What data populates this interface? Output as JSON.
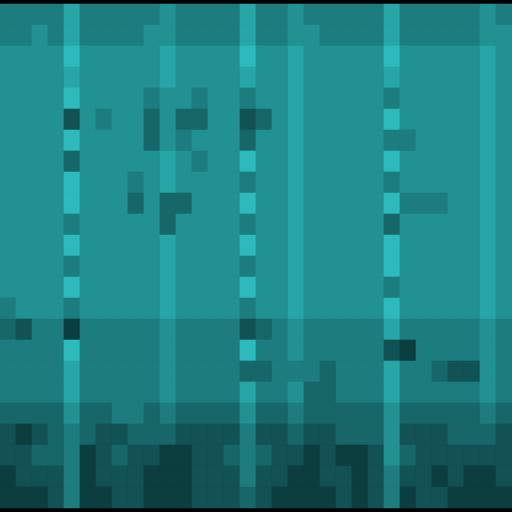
{
  "chart_data": {
    "type": "heatmap",
    "tick_labels": false,
    "zlim": [
      0,
      10
    ],
    "color": [
      "#031415",
      "#36e4e6"
    ],
    "cells": [
      [
        5,
        5,
        5,
        5,
        7,
        5,
        5,
        5,
        5,
        5,
        6,
        5,
        5,
        5,
        5,
        7,
        5,
        5,
        6,
        5,
        5,
        5,
        5,
        5,
        7,
        5,
        5,
        5,
        5,
        5,
        6,
        5
      ],
      [
        5,
        5,
        6,
        5,
        7,
        5,
        5,
        5,
        5,
        6,
        6,
        5,
        5,
        5,
        5,
        7,
        5,
        5,
        6,
        6,
        5,
        5,
        5,
        5,
        7,
        5,
        5,
        5,
        5,
        5,
        6,
        6
      ],
      [
        6,
        6,
        6,
        6,
        8,
        6,
        6,
        6,
        6,
        6,
        7,
        6,
        6,
        6,
        6,
        8,
        6,
        6,
        7,
        6,
        6,
        6,
        6,
        6,
        8,
        6,
        6,
        6,
        6,
        6,
        7,
        6
      ],
      [
        6,
        6,
        6,
        6,
        7,
        6,
        6,
        6,
        6,
        6,
        7,
        6,
        6,
        6,
        6,
        7,
        6,
        6,
        7,
        6,
        6,
        6,
        6,
        6,
        7,
        6,
        6,
        6,
        6,
        6,
        7,
        6
      ],
      [
        6,
        6,
        6,
        6,
        8,
        6,
        6,
        6,
        6,
        5,
        6,
        6,
        5,
        6,
        6,
        5,
        6,
        6,
        7,
        6,
        6,
        6,
        6,
        6,
        5,
        6,
        6,
        6,
        6,
        6,
        7,
        6
      ],
      [
        6,
        6,
        6,
        6,
        3,
        6,
        5,
        6,
        6,
        4,
        6,
        4,
        4,
        6,
        6,
        3,
        4,
        6,
        7,
        6,
        6,
        6,
        6,
        6,
        8,
        6,
        6,
        6,
        6,
        6,
        7,
        6
      ],
      [
        6,
        6,
        6,
        6,
        8,
        6,
        6,
        6,
        6,
        4,
        6,
        5,
        6,
        6,
        6,
        4,
        6,
        6,
        7,
        6,
        6,
        6,
        6,
        6,
        5,
        5,
        6,
        6,
        6,
        6,
        7,
        6
      ],
      [
        6,
        6,
        6,
        6,
        4,
        6,
        6,
        6,
        6,
        6,
        7,
        6,
        5,
        6,
        6,
        8,
        6,
        6,
        7,
        6,
        6,
        6,
        6,
        6,
        8,
        6,
        6,
        6,
        6,
        6,
        7,
        6
      ],
      [
        6,
        6,
        6,
        6,
        8,
        6,
        6,
        6,
        5,
        6,
        7,
        6,
        6,
        6,
        6,
        5,
        6,
        6,
        7,
        6,
        6,
        6,
        6,
        6,
        5,
        6,
        6,
        6,
        6,
        6,
        7,
        6
      ],
      [
        6,
        6,
        6,
        6,
        8,
        6,
        6,
        6,
        4,
        6,
        4,
        4,
        6,
        6,
        6,
        8,
        6,
        6,
        7,
        6,
        6,
        6,
        6,
        6,
        8,
        5,
        5,
        5,
        6,
        6,
        7,
        6
      ],
      [
        6,
        6,
        6,
        6,
        5,
        6,
        6,
        6,
        6,
        6,
        4,
        6,
        6,
        6,
        6,
        5,
        6,
        6,
        7,
        6,
        6,
        6,
        6,
        6,
        4,
        6,
        6,
        6,
        6,
        6,
        7,
        6
      ],
      [
        6,
        6,
        6,
        6,
        8,
        6,
        6,
        6,
        6,
        6,
        7,
        6,
        6,
        6,
        6,
        8,
        6,
        6,
        7,
        6,
        6,
        6,
        6,
        6,
        8,
        6,
        6,
        6,
        6,
        6,
        7,
        6
      ],
      [
        6,
        6,
        6,
        6,
        5,
        6,
        6,
        6,
        6,
        6,
        7,
        6,
        6,
        6,
        6,
        5,
        6,
        6,
        7,
        6,
        6,
        6,
        6,
        6,
        8,
        6,
        6,
        6,
        6,
        6,
        7,
        6
      ],
      [
        6,
        6,
        6,
        6,
        8,
        6,
        6,
        6,
        6,
        6,
        7,
        6,
        6,
        6,
        6,
        8,
        6,
        6,
        7,
        6,
        6,
        6,
        6,
        6,
        5,
        6,
        6,
        6,
        6,
        6,
        7,
        6
      ],
      [
        5,
        6,
        6,
        6,
        5,
        6,
        6,
        6,
        6,
        6,
        7,
        6,
        6,
        6,
        6,
        5,
        6,
        6,
        7,
        6,
        6,
        6,
        6,
        6,
        8,
        6,
        6,
        6,
        6,
        6,
        7,
        6
      ],
      [
        4,
        3,
        5,
        5,
        2,
        5,
        5,
        5,
        5,
        5,
        6,
        5,
        5,
        5,
        5,
        3,
        4,
        5,
        6,
        5,
        5,
        5,
        5,
        5,
        7,
        5,
        5,
        5,
        5,
        5,
        6,
        5
      ],
      [
        5,
        5,
        5,
        5,
        8,
        5,
        5,
        5,
        5,
        5,
        6,
        5,
        5,
        5,
        5,
        8,
        5,
        5,
        6,
        5,
        5,
        5,
        5,
        5,
        3,
        2,
        5,
        5,
        5,
        5,
        6,
        5
      ],
      [
        5,
        5,
        5,
        5,
        7,
        5,
        5,
        5,
        5,
        5,
        6,
        5,
        5,
        5,
        5,
        4,
        4,
        5,
        5,
        5,
        4,
        5,
        5,
        5,
        7,
        5,
        5,
        4,
        3,
        3,
        6,
        5
      ],
      [
        5,
        5,
        5,
        5,
        7,
        5,
        5,
        5,
        5,
        5,
        6,
        5,
        5,
        5,
        5,
        7,
        5,
        5,
        6,
        4,
        4,
        5,
        5,
        5,
        7,
        5,
        5,
        5,
        5,
        5,
        6,
        5
      ],
      [
        4,
        4,
        4,
        4,
        6,
        4,
        4,
        5,
        5,
        4,
        5,
        4,
        4,
        4,
        4,
        6,
        4,
        4,
        5,
        4,
        4,
        4,
        4,
        4,
        6,
        4,
        4,
        4,
        4,
        4,
        5,
        4
      ],
      [
        3,
        2,
        3,
        4,
        5,
        4,
        3,
        3,
        4,
        4,
        4,
        3,
        3,
        3,
        3,
        5,
        3,
        3,
        4,
        3,
        3,
        4,
        4,
        4,
        6,
        3,
        3,
        3,
        4,
        4,
        4,
        3
      ],
      [
        3,
        3,
        4,
        4,
        5,
        2,
        3,
        4,
        3,
        3,
        2,
        2,
        3,
        3,
        4,
        5,
        4,
        3,
        3,
        2,
        3,
        2,
        2,
        3,
        6,
        4,
        3,
        3,
        3,
        3,
        3,
        3
      ],
      [
        2,
        3,
        3,
        3,
        5,
        2,
        3,
        3,
        3,
        2,
        2,
        2,
        3,
        3,
        3,
        5,
        3,
        3,
        2,
        2,
        3,
        3,
        2,
        3,
        5,
        3,
        3,
        2,
        3,
        2,
        2,
        3
      ],
      [
        2,
        2,
        2,
        3,
        5,
        2,
        2,
        3,
        3,
        2,
        2,
        2,
        3,
        3,
        3,
        4,
        3,
        2,
        2,
        2,
        2,
        3,
        2,
        3,
        5,
        2,
        3,
        3,
        2,
        2,
        2,
        2
      ]
    ]
  }
}
